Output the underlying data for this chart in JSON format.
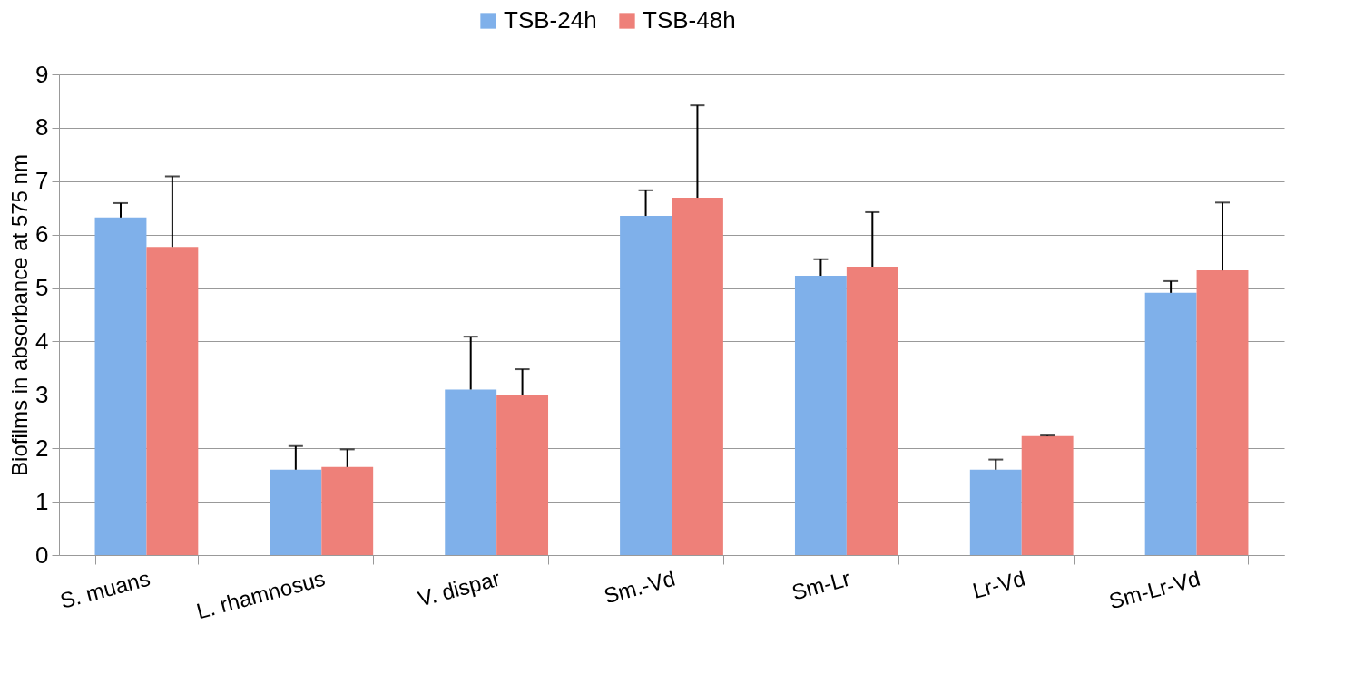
{
  "chart_data": {
    "type": "bar",
    "ylabel": "Biofilms in absorbance at 575 nm",
    "categories": [
      "S. muans",
      "L. rhamnosus",
      "V. dispar",
      "Sm.-Vd",
      "Sm-Lr",
      "Lr-Vd",
      "Sm-Lr-Vd"
    ],
    "series": [
      {
        "name": "TSB-24h",
        "color": "#7fb0ea",
        "values": [
          6.32,
          1.6,
          3.1,
          6.35,
          5.23,
          1.6,
          4.91
        ],
        "errors": [
          [
            6.32,
            6.59
          ],
          [
            1.6,
            2.04
          ],
          [
            3.1,
            4.09
          ],
          [
            6.35,
            6.83
          ],
          [
            5.23,
            5.54
          ],
          [
            1.6,
            1.79
          ],
          [
            4.91,
            5.13
          ]
        ]
      },
      {
        "name": "TSB-48h",
        "color": "#ee8079",
        "values": [
          5.77,
          1.65,
          2.99,
          6.69,
          5.4,
          2.23,
          5.33
        ],
        "errors": [
          [
            5.77,
            7.09
          ],
          [
            1.65,
            1.98
          ],
          [
            2.99,
            3.48
          ],
          [
            6.69,
            8.42
          ],
          [
            5.4,
            6.42
          ],
          [
            2.23,
            2.24
          ],
          [
            5.33,
            6.6
          ]
        ]
      }
    ],
    "ylim": [
      0,
      9
    ],
    "yticks": [
      0,
      1,
      2,
      3,
      4,
      5,
      6,
      7,
      8,
      9
    ],
    "grid": "y",
    "legend": "top"
  }
}
